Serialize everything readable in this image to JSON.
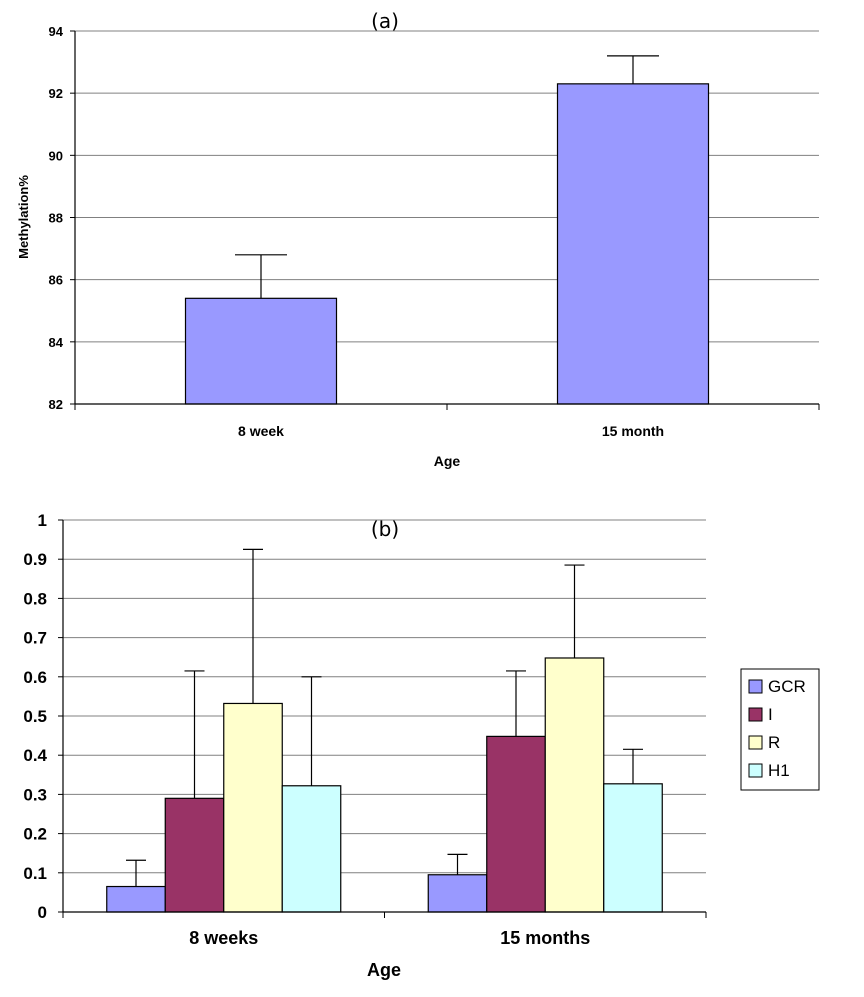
{
  "chart_data": [
    {
      "type": "bar",
      "title": "(a)",
      "xlabel": "Age",
      "ylabel": "Methylation%",
      "categories": [
        "8 week",
        "15 month"
      ],
      "values": [
        85.4,
        92.3
      ],
      "errors_upper": [
        1.4,
        0.9
      ],
      "ylim": [
        82,
        94
      ],
      "yticks": [
        82,
        84,
        86,
        88,
        90,
        92,
        94
      ],
      "grid": true,
      "color": "#9999ff"
    },
    {
      "type": "bar",
      "title": "(b)",
      "xlabel": "Age",
      "ylabel": "",
      "categories": [
        "8 weeks",
        "15 months"
      ],
      "series": [
        {
          "name": "GCR",
          "values": [
            0.065,
            0.095
          ],
          "errors_upper": [
            0.067,
            0.052
          ],
          "color": "#9999ff"
        },
        {
          "name": "I",
          "values": [
            0.29,
            0.448
          ],
          "errors_upper": [
            0.325,
            0.167
          ],
          "color": "#993366"
        },
        {
          "name": "R",
          "values": [
            0.532,
            0.648
          ],
          "errors_upper": [
            0.393,
            0.237
          ],
          "color": "#ffffcc"
        },
        {
          "name": "H1",
          "values": [
            0.322,
            0.327
          ],
          "errors_upper": [
            0.278,
            0.088
          ],
          "color": "#ccffff"
        }
      ],
      "ylim": [
        0,
        1
      ],
      "yticks": [
        "0",
        "0.1",
        "0.2",
        "0.3",
        "0.4",
        "0.5",
        "0.6",
        "0.7",
        "0.8",
        "0.9",
        "1"
      ],
      "grid": true,
      "legend_position": "right"
    }
  ]
}
